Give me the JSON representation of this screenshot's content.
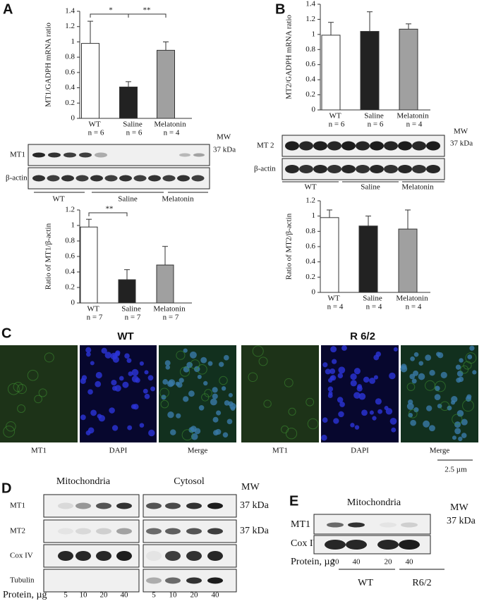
{
  "panels": [
    "A",
    "B",
    "C",
    "D",
    "E"
  ],
  "chart_data": [
    {
      "type": "bar",
      "ylabel": "MT1/GADPH mRNA ratio",
      "categories": [
        "WT",
        "Saline",
        "Melatonin"
      ],
      "n_labels": [
        "n = 6",
        "n = 6",
        "n = 4"
      ],
      "values": [
        0.98,
        0.41,
        0.89
      ],
      "errors": [
        0.29,
        0.07,
        0.11
      ],
      "colors": [
        "#ffffff",
        "#222222",
        "#a0a0a0"
      ],
      "ylim": [
        0,
        1.4
      ],
      "yticks": [
        0,
        0.2,
        0.4,
        0.6,
        0.8,
        1,
        1.2,
        1.4
      ],
      "annotations": [
        "*",
        "**"
      ]
    },
    {
      "type": "bar",
      "ylabel": "Ratio of MT1/β-actin",
      "categories": [
        "WT",
        "Saline",
        "Melatonin"
      ],
      "n_labels": [
        "n = 7",
        "n = 7",
        "n = 7"
      ],
      "values": [
        0.98,
        0.3,
        0.49
      ],
      "errors": [
        0.1,
        0.13,
        0.24
      ],
      "colors": [
        "#ffffff",
        "#222222",
        "#a0a0a0"
      ],
      "ylim": [
        0,
        1.2
      ],
      "yticks": [
        0,
        0.2,
        0.4,
        0.6,
        0.8,
        1,
        1.2
      ],
      "annotations": [
        "**"
      ]
    },
    {
      "type": "bar",
      "ylabel": "MT2/GADPH mRNA ratio",
      "categories": [
        "WT",
        "Saline",
        "Melatonin"
      ],
      "n_labels": [
        "n = 6",
        "n = 6",
        "n = 4"
      ],
      "values": [
        0.99,
        1.04,
        1.07
      ],
      "errors": [
        0.17,
        0.26,
        0.07
      ],
      "colors": [
        "#ffffff",
        "#222222",
        "#a0a0a0"
      ],
      "ylim": [
        0,
        1.4
      ],
      "yticks": [
        0,
        0.2,
        0.4,
        0.6,
        0.8,
        1,
        1.2,
        1.4
      ],
      "annotations": []
    },
    {
      "type": "bar",
      "ylabel": "Ratio of MT2/β-actin",
      "categories": [
        "WT",
        "Saline",
        "Melatonin"
      ],
      "n_labels": [
        "n = 4",
        "n = 4",
        "n = 4"
      ],
      "values": [
        0.98,
        0.87,
        0.83
      ],
      "errors": [
        0.1,
        0.13,
        0.25
      ],
      "colors": [
        "#ffffff",
        "#222222",
        "#a0a0a0"
      ],
      "ylim": [
        0,
        1.2
      ],
      "yticks": [
        0,
        0.2,
        0.4,
        0.6,
        0.8,
        1,
        1.2
      ],
      "annotations": []
    }
  ],
  "blot_a": {
    "mw": "MW",
    "kda": "37 kDa",
    "rows": [
      "MT1",
      "β-actin"
    ],
    "groups": [
      "WT",
      "Saline",
      "Melatonin"
    ]
  },
  "blot_b": {
    "mw": "MW",
    "kda": "37 kDa",
    "rows": [
      "MT 2",
      "β-actin"
    ],
    "groups": [
      "WT",
      "Saline",
      "Melatonin"
    ]
  },
  "panel_c": {
    "groups": [
      "WT",
      "R 6/2"
    ],
    "images": [
      "MT1",
      "DAPI",
      "Merge",
      "MT1",
      "DAPI",
      "Merge"
    ],
    "scale": "2.5 µm"
  },
  "panel_d": {
    "headers": [
      "Mitochondria",
      "Cytosol"
    ],
    "mw": "MW",
    "rows": [
      "MT1",
      "MT2",
      "Cox IV",
      "Tubulin"
    ],
    "kda": [
      "37 kDa",
      "37 kDa"
    ],
    "protein_label": "Protein, µg",
    "amounts": [
      5,
      10,
      20,
      40,
      5,
      10,
      20,
      40
    ]
  },
  "panel_e": {
    "header": "Mitochondria",
    "mw": "MW",
    "kda": "37 kDa",
    "rows": [
      "MT1",
      "Cox IV"
    ],
    "protein_label": "Protein, µg",
    "amounts": [
      20,
      40,
      20,
      40
    ],
    "groups": [
      "WT",
      "R6/2"
    ]
  }
}
